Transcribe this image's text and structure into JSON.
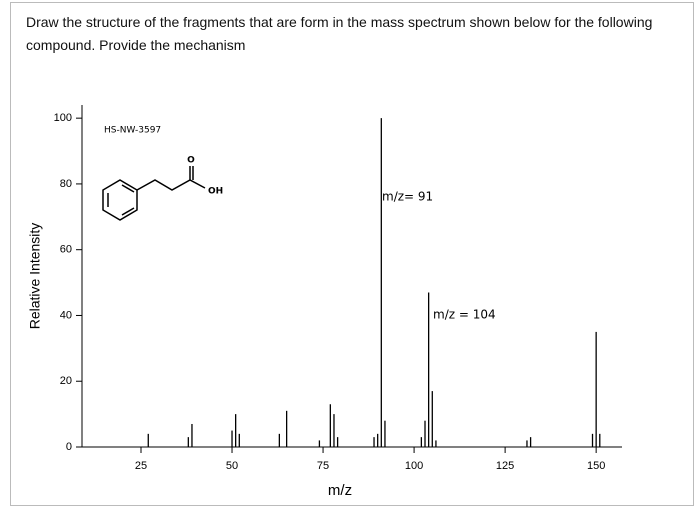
{
  "question": [
    "Draw the structure of the fragments that are form in the mass spectrum shown below for the following",
    "compound.  Provide the mechanism"
  ],
  "chart_data": {
    "type": "bar",
    "xlabel": "m/z",
    "ylabel": "Relative Intensity",
    "x": [
      27,
      38,
      39,
      50,
      51,
      52,
      63,
      65,
      74,
      77,
      78,
      79,
      89,
      90,
      91,
      92,
      102,
      103,
      104,
      105,
      106,
      131,
      132,
      149,
      150,
      151
    ],
    "values": [
      4,
      3,
      7,
      5,
      10,
      4,
      4,
      11,
      2,
      13,
      10,
      3,
      3,
      4,
      100,
      8,
      3,
      8,
      47,
      17,
      2,
      2,
      3,
      4,
      35,
      4
    ],
    "color": "#000000",
    "xlim": [
      8.8,
      157.1
    ],
    "xticks": [
      25,
      50,
      75,
      100,
      125,
      150
    ],
    "ylim": [
      0,
      104
    ],
    "yticks": [
      0,
      20,
      40,
      60,
      80,
      100
    ],
    "annotations": [
      "HS-NW-3597",
      "m/z= 91",
      "m/z = 104",
      "OH",
      "O"
    ]
  }
}
